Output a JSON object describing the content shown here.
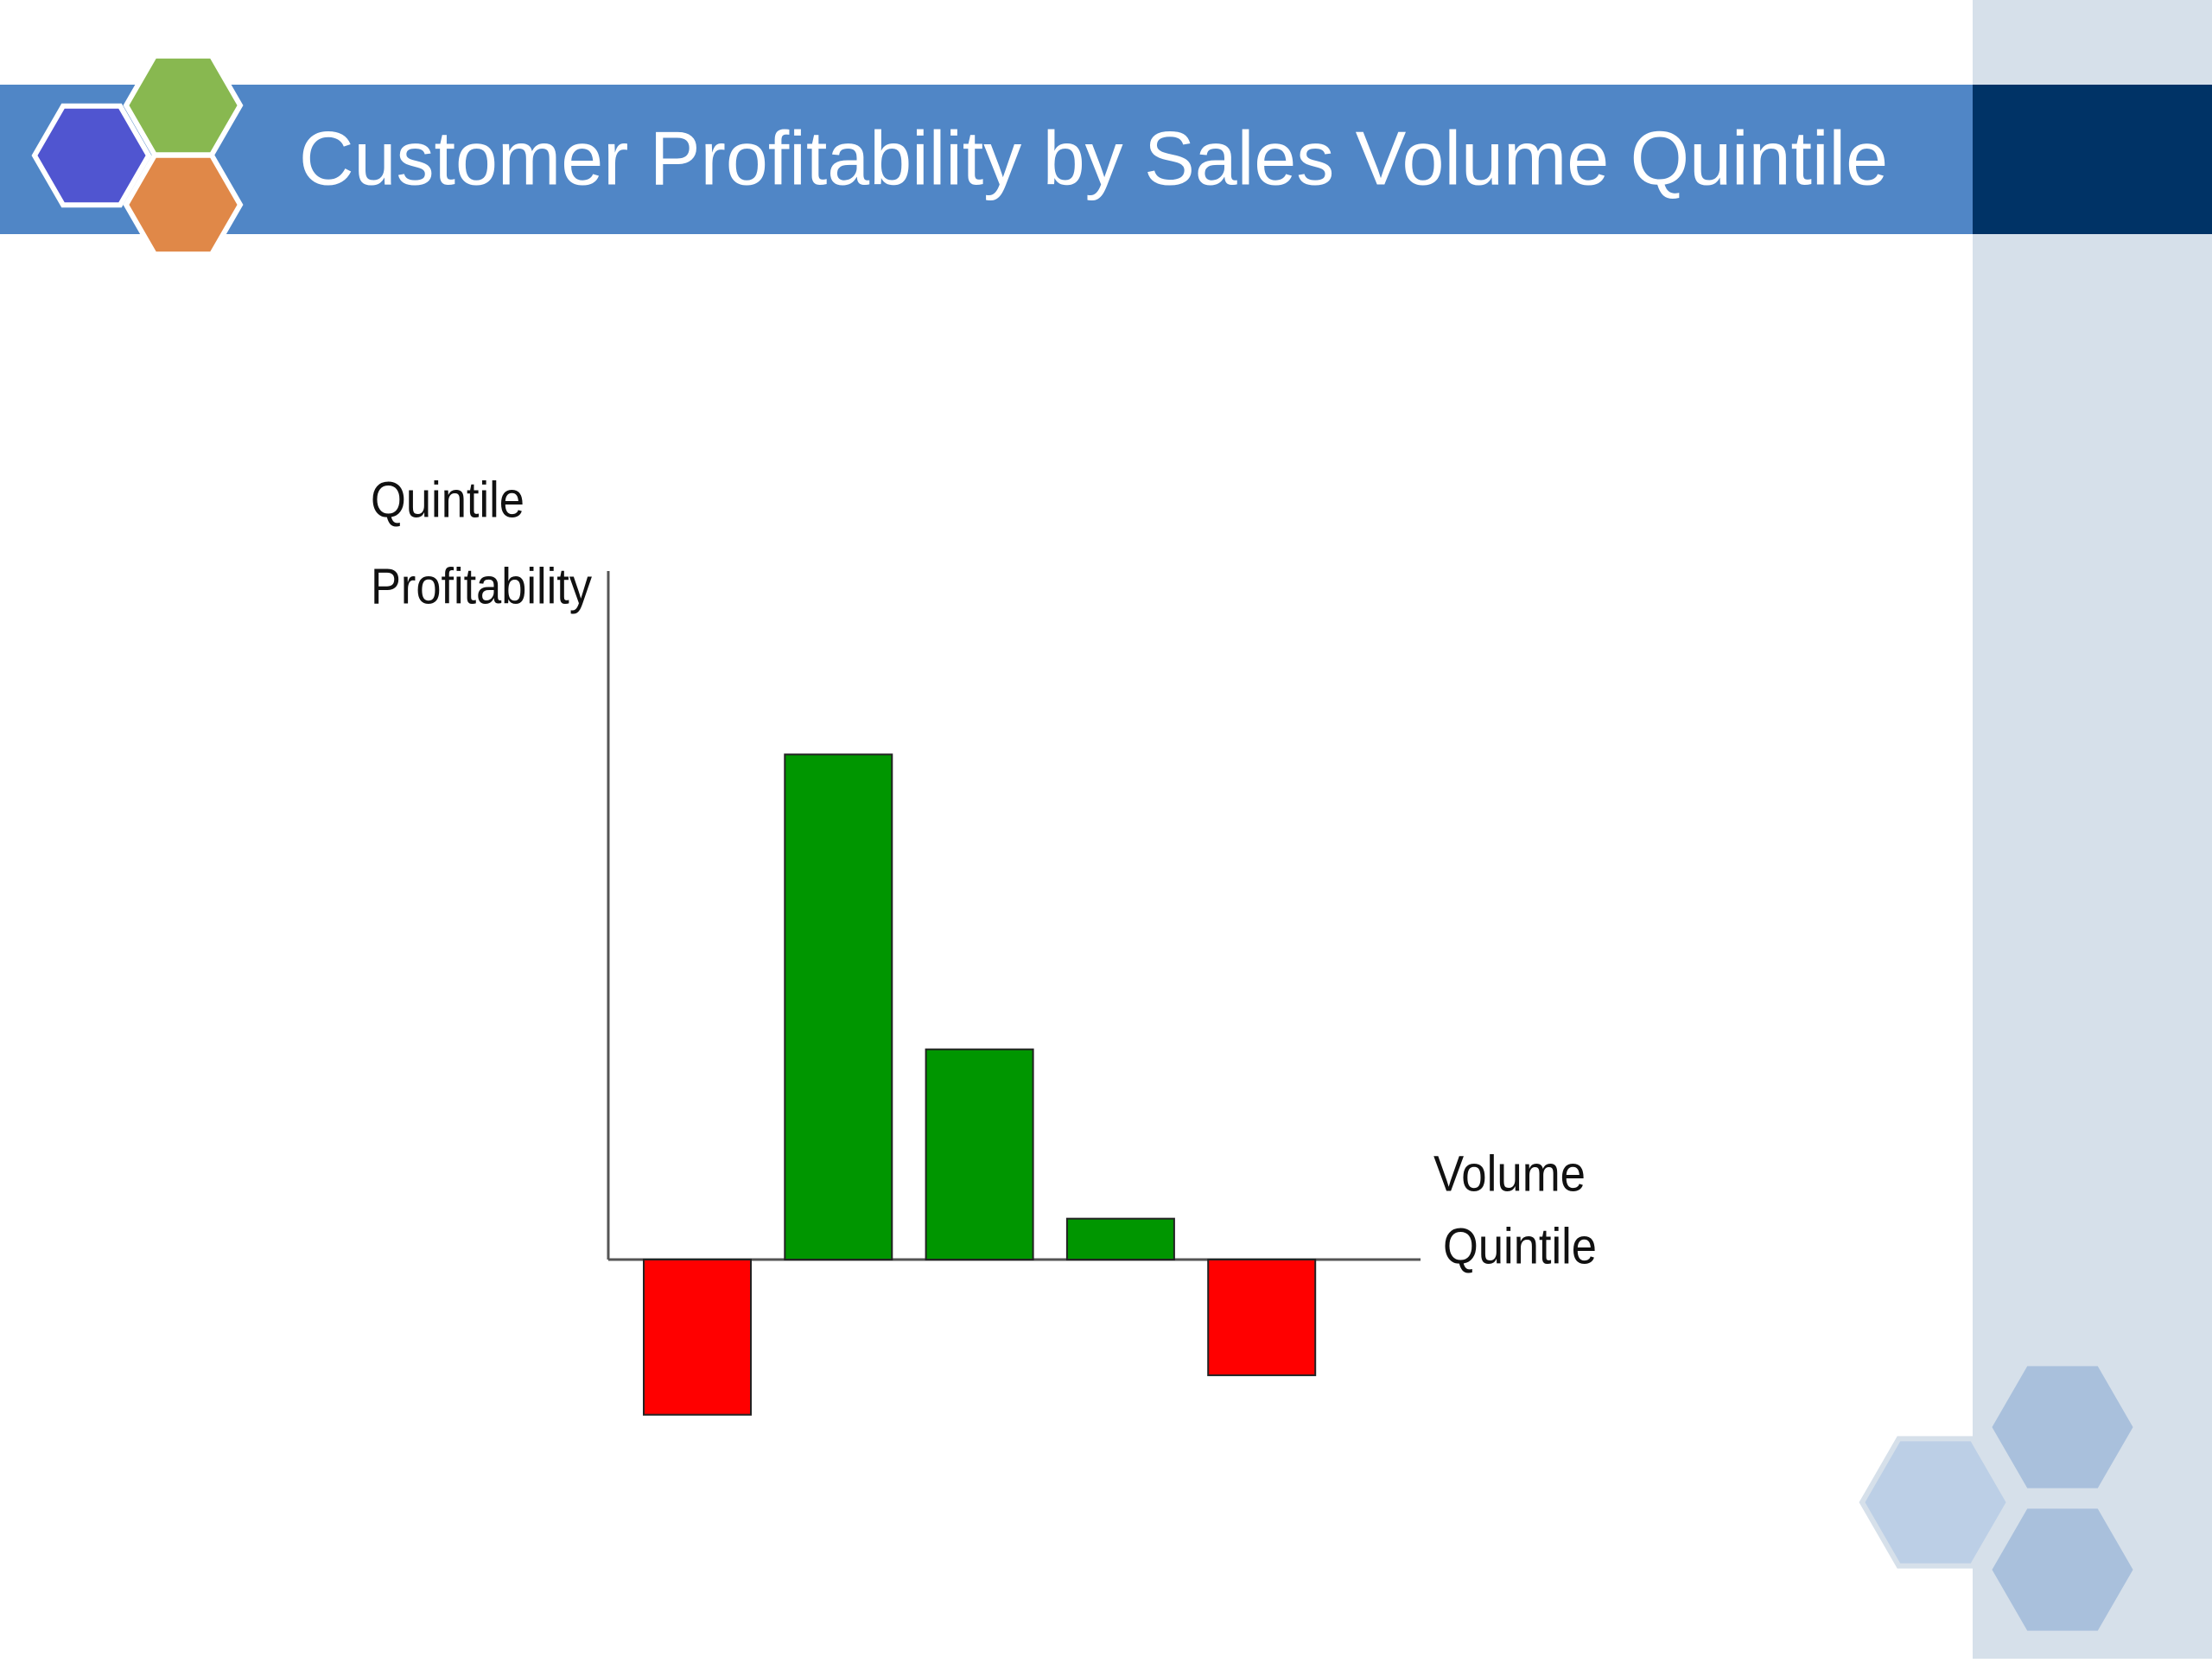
{
  "chart_data": {
    "type": "bar",
    "title": "Customer Profitability by Sales Volume Quintile",
    "ylabel": [
      "Quintile",
      "Profitability"
    ],
    "xlabel": [
      "Volume",
      "Quintile"
    ],
    "categories": [
      null,
      null,
      null,
      null,
      null
    ],
    "values": [
      -110,
      358,
      149,
      29,
      -82
    ],
    "colors": [
      "#ff0000",
      "#009600",
      "#009600",
      "#009600",
      "#ff0000"
    ],
    "ylim": [
      -120,
      488
    ],
    "grid": false
  }
}
